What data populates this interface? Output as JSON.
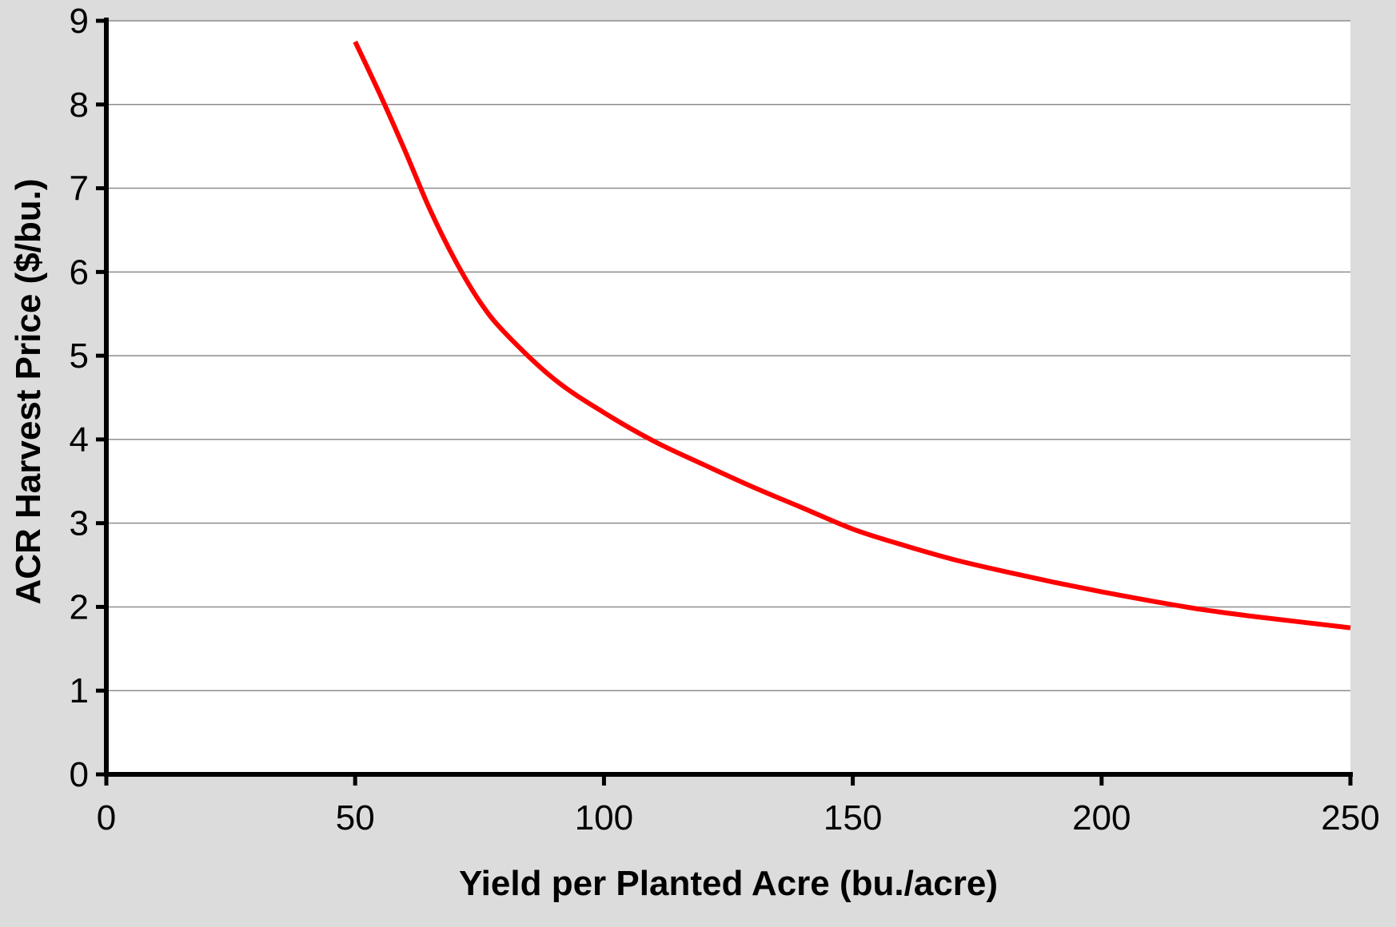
{
  "chart_data": {
    "type": "line",
    "title": "",
    "xlabel": "Yield per Planted Acre (bu./acre)",
    "ylabel": "ACR Harvest Price ($/bu.)",
    "xlim": [
      0,
      250
    ],
    "ylim": [
      0,
      9
    ],
    "x_ticks": [
      0,
      50,
      100,
      150,
      200,
      250
    ],
    "y_ticks": [
      0,
      1,
      2,
      3,
      4,
      5,
      6,
      7,
      8,
      9
    ],
    "x_tick_labels": [
      "0",
      "50",
      "100",
      "150",
      "200",
      "250"
    ],
    "y_tick_labels": [
      "0",
      "1",
      "2",
      "3",
      "4",
      "5",
      "6",
      "7",
      "8",
      "9"
    ],
    "grid": "horizontal",
    "legend": "none",
    "series": [
      {
        "color": "#ff0000",
        "x": [
          50,
          55,
          60,
          65,
          70,
          75,
          80,
          90,
          100,
          110,
          120,
          130,
          140,
          150,
          160,
          170,
          180,
          190,
          200,
          210,
          220,
          230,
          240,
          250
        ],
        "y": [
          8.75,
          8.12,
          7.45,
          6.75,
          6.15,
          5.65,
          5.28,
          4.72,
          4.32,
          3.98,
          3.7,
          3.43,
          3.18,
          2.93,
          2.74,
          2.57,
          2.43,
          2.3,
          2.18,
          2.07,
          1.97,
          1.89,
          1.82,
          1.75
        ]
      }
    ]
  },
  "colors": {
    "background": "#dcdcdc",
    "plot_area": "#ffffff",
    "grid": "#8c8c8c",
    "axis": "#000000",
    "series": "#ff0000"
  }
}
